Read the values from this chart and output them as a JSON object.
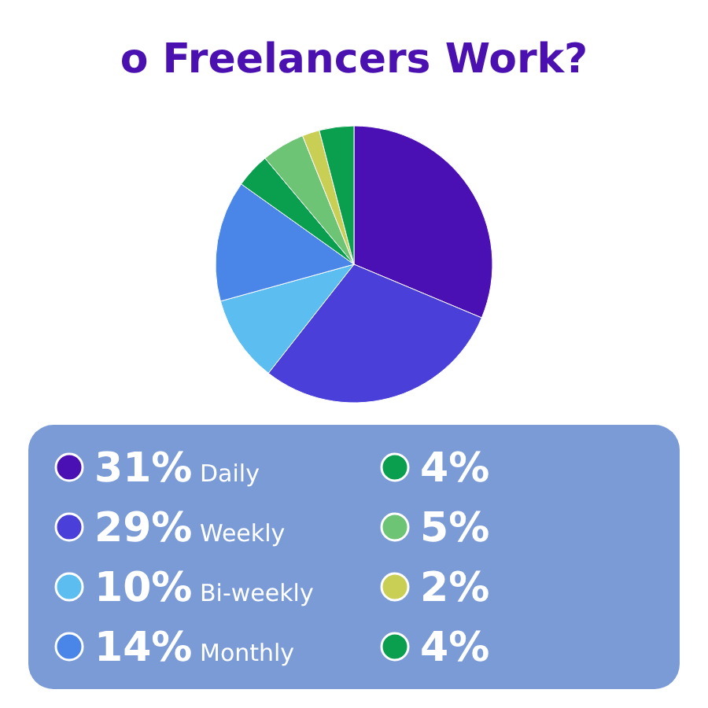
{
  "chart_data": {
    "type": "pie",
    "title": "o Freelancers Work?",
    "categories": [
      "31% Daily",
      "29% Weekly",
      "10% Bi-weekly",
      "14% Monthly",
      "4%",
      "5%",
      "2%",
      "4%"
    ],
    "values": [
      31,
      29,
      10,
      14,
      4,
      5,
      2,
      4
    ],
    "colors": [
      "#4b10b4",
      "#4a3fd8",
      "#5bbdf0",
      "#4a86e8",
      "#0a9f4e",
      "#6cc474",
      "#c9cf55",
      "#0a9f4e"
    ],
    "legend": "bottom"
  }
}
